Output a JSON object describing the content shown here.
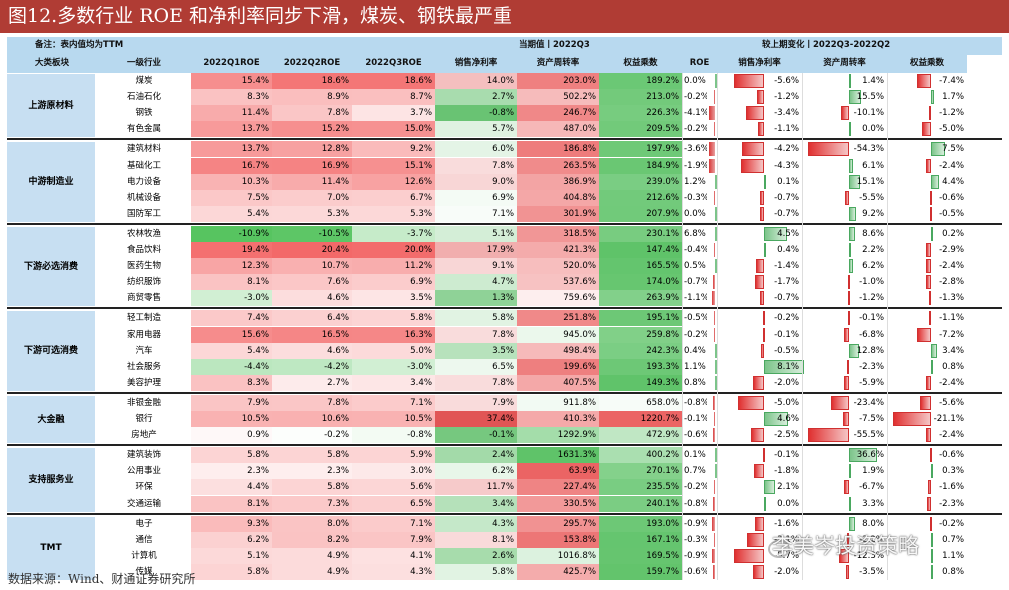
{
  "title": "图12.多数行业 ROE 和净利率同步下滑，煤炭、钢铁最严重",
  "note": "备注：表内值均为TTM",
  "current_header": "当期值丨2022Q3",
  "change_header": "较上期变化丨2022Q3-2022Q2",
  "columns": [
    "大类板块",
    "一级行业",
    "2022Q1ROE",
    "2022Q2ROE",
    "2022Q3ROE",
    "销售净利率",
    "资产周转率",
    "权益乘数",
    "ROE",
    "销售净利率",
    "资产周转率",
    "权益乘数"
  ],
  "source": "数据来源：Wind、财通证券研究所",
  "watermark": "李美岑投资策略",
  "groups": [
    {
      "name": "上游原材料",
      "rows": [
        {
          "industry": "煤炭",
          "q1": "15.4%",
          "q2": "18.6%",
          "q3": "18.6%",
          "npm": "14.0%",
          "at": "203.0%",
          "em": "189.2%",
          "d_roe": "0.0%",
          "d_npm": "-5.6%",
          "d_at": "1.4%",
          "d_em": "-7.4%"
        },
        {
          "industry": "石油石化",
          "q1": "8.3%",
          "q2": "8.9%",
          "q3": "8.7%",
          "npm": "2.7%",
          "at": "502.2%",
          "em": "213.0%",
          "d_roe": "-0.2%",
          "d_npm": "-1.2%",
          "d_at": "15.5%",
          "d_em": "1.7%"
        },
        {
          "industry": "钢铁",
          "q1": "11.4%",
          "q2": "7.8%",
          "q3": "3.7%",
          "npm": "-0.8%",
          "at": "246.7%",
          "em": "226.3%",
          "d_roe": "-4.1%",
          "d_npm": "-3.4%",
          "d_at": "-10.1%",
          "d_em": "-1.2%"
        },
        {
          "industry": "有色金属",
          "q1": "13.7%",
          "q2": "15.2%",
          "q3": "15.0%",
          "npm": "5.7%",
          "at": "487.0%",
          "em": "209.5%",
          "d_roe": "-0.2%",
          "d_npm": "-1.1%",
          "d_at": "0.0%",
          "d_em": "-5.0%"
        }
      ]
    },
    {
      "name": "中游制造业",
      "rows": [
        {
          "industry": "建筑材料",
          "q1": "13.7%",
          "q2": "12.8%",
          "q3": "9.2%",
          "npm": "6.0%",
          "at": "186.8%",
          "em": "197.9%",
          "d_roe": "-3.6%",
          "d_npm": "-4.2%",
          "d_at": "-54.3%",
          "d_em": "7.5%"
        },
        {
          "industry": "基础化工",
          "q1": "16.7%",
          "q2": "16.9%",
          "q3": "15.1%",
          "npm": "7.8%",
          "at": "263.5%",
          "em": "184.9%",
          "d_roe": "-1.9%",
          "d_npm": "-4.3%",
          "d_at": "6.1%",
          "d_em": "-2.4%"
        },
        {
          "industry": "电力设备",
          "q1": "10.3%",
          "q2": "11.4%",
          "q3": "12.6%",
          "npm": "9.0%",
          "at": "386.9%",
          "em": "239.0%",
          "d_roe": "1.2%",
          "d_npm": "0.1%",
          "d_at": "15.1%",
          "d_em": "4.4%"
        },
        {
          "industry": "机械设备",
          "q1": "7.5%",
          "q2": "7.0%",
          "q3": "6.7%",
          "npm": "6.9%",
          "at": "404.8%",
          "em": "212.6%",
          "d_roe": "-0.3%",
          "d_npm": "-0.7%",
          "d_at": "-5.5%",
          "d_em": "-0.6%"
        },
        {
          "industry": "国防军工",
          "q1": "5.4%",
          "q2": "5.3%",
          "q3": "5.3%",
          "npm": "7.1%",
          "at": "301.9%",
          "em": "207.9%",
          "d_roe": "0.0%",
          "d_npm": "-0.7%",
          "d_at": "9.2%",
          "d_em": "-0.5%"
        }
      ]
    },
    {
      "name": "下游必选消费",
      "rows": [
        {
          "industry": "农林牧渔",
          "q1": "-10.9%",
          "q2": "-10.5%",
          "q3": "-3.7%",
          "npm": "5.1%",
          "at": "318.5%",
          "em": "230.1%",
          "d_roe": "6.8%",
          "d_npm": "4.5%",
          "d_at": "8.6%",
          "d_em": "0.2%"
        },
        {
          "industry": "食品饮料",
          "q1": "19.4%",
          "q2": "20.4%",
          "q3": "20.0%",
          "npm": "17.9%",
          "at": "421.3%",
          "em": "147.4%",
          "d_roe": "-0.4%",
          "d_npm": "0.4%",
          "d_at": "2.2%",
          "d_em": "-2.9%"
        },
        {
          "industry": "医药生物",
          "q1": "12.3%",
          "q2": "10.7%",
          "q3": "11.2%",
          "npm": "9.1%",
          "at": "520.0%",
          "em": "165.5%",
          "d_roe": "0.5%",
          "d_npm": "-1.4%",
          "d_at": "6.2%",
          "d_em": "-2.4%"
        },
        {
          "industry": "纺织服饰",
          "q1": "8.1%",
          "q2": "7.6%",
          "q3": "6.9%",
          "npm": "4.7%",
          "at": "537.6%",
          "em": "174.0%",
          "d_roe": "-0.7%",
          "d_npm": "-1.7%",
          "d_at": "-1.0%",
          "d_em": "-2.8%"
        },
        {
          "industry": "商贸零售",
          "q1": "-3.0%",
          "q2": "4.6%",
          "q3": "3.5%",
          "npm": "1.3%",
          "at": "759.6%",
          "em": "263.9%",
          "d_roe": "-1.1%",
          "d_npm": "-0.7%",
          "d_at": "-1.2%",
          "d_em": "-1.3%"
        }
      ]
    },
    {
      "name": "下游可选消费",
      "rows": [
        {
          "industry": "轻工制造",
          "q1": "7.4%",
          "q2": "6.4%",
          "q3": "5.8%",
          "npm": "5.8%",
          "at": "251.8%",
          "em": "195.1%",
          "d_roe": "-0.5%",
          "d_npm": "-0.2%",
          "d_at": "-0.1%",
          "d_em": "-1.1%"
        },
        {
          "industry": "家用电器",
          "q1": "15.6%",
          "q2": "16.5%",
          "q3": "16.3%",
          "npm": "7.8%",
          "at": "945.0%",
          "em": "259.8%",
          "d_roe": "-0.2%",
          "d_npm": "-0.1%",
          "d_at": "-6.8%",
          "d_em": "-7.2%"
        },
        {
          "industry": "汽车",
          "q1": "5.4%",
          "q2": "4.6%",
          "q3": "5.0%",
          "npm": "3.5%",
          "at": "498.4%",
          "em": "242.3%",
          "d_roe": "0.4%",
          "d_npm": "-0.5%",
          "d_at": "12.8%",
          "d_em": "3.4%"
        },
        {
          "industry": "社会服务",
          "q1": "-4.4%",
          "q2": "-4.2%",
          "q3": "-3.0%",
          "npm": "6.5%",
          "at": "199.6%",
          "em": "193.3%",
          "d_roe": "1.1%",
          "d_npm": "8.1%",
          "d_at": "-2.3%",
          "d_em": "0.8%"
        },
        {
          "industry": "美容护理",
          "q1": "8.3%",
          "q2": "2.7%",
          "q3": "3.4%",
          "npm": "7.8%",
          "at": "407.5%",
          "em": "149.3%",
          "d_roe": "0.8%",
          "d_npm": "-2.0%",
          "d_at": "-5.9%",
          "d_em": "-2.4%"
        }
      ]
    },
    {
      "name": "大金融",
      "rows": [
        {
          "industry": "非银金融",
          "q1": "7.9%",
          "q2": "7.8%",
          "q3": "7.1%",
          "npm": "7.9%",
          "at": "911.8%",
          "em": "658.0%",
          "d_roe": "-0.8%",
          "d_npm": "-5.0%",
          "d_at": "-23.4%",
          "d_em": "-5.6%"
        },
        {
          "industry": "银行",
          "q1": "10.5%",
          "q2": "10.6%",
          "q3": "10.5%",
          "npm": "37.4%",
          "at": "410.3%",
          "em": "1220.7%",
          "d_roe": "-0.1%",
          "d_npm": "4.6%",
          "d_at": "-7.5%",
          "d_em": "-21.1%"
        },
        {
          "industry": "房地产",
          "q1": "0.9%",
          "q2": "-0.2%",
          "q3": "-0.8%",
          "npm": "-0.1%",
          "at": "1292.9%",
          "em": "472.9%",
          "d_roe": "-0.6%",
          "d_npm": "-2.5%",
          "d_at": "-55.5%",
          "d_em": "-2.4%"
        }
      ]
    },
    {
      "name": "支持服务业",
      "rows": [
        {
          "industry": "建筑装饰",
          "q1": "5.8%",
          "q2": "5.8%",
          "q3": "5.9%",
          "npm": "2.4%",
          "at": "1631.3%",
          "em": "400.2%",
          "d_roe": "0.1%",
          "d_npm": "-0.1%",
          "d_at": "36.6%",
          "d_em": "-0.6%"
        },
        {
          "industry": "公用事业",
          "q1": "2.3%",
          "q2": "2.3%",
          "q3": "3.0%",
          "npm": "6.2%",
          "at": "63.9%",
          "em": "270.1%",
          "d_roe": "0.7%",
          "d_npm": "-1.8%",
          "d_at": "1.9%",
          "d_em": "0.3%"
        },
        {
          "industry": "环保",
          "q1": "4.4%",
          "q2": "5.8%",
          "q3": "5.6%",
          "npm": "11.7%",
          "at": "227.4%",
          "em": "235.5%",
          "d_roe": "-0.2%",
          "d_npm": "2.1%",
          "d_at": "-6.7%",
          "d_em": "-1.6%"
        },
        {
          "industry": "交通运输",
          "q1": "8.1%",
          "q2": "7.3%",
          "q3": "6.5%",
          "npm": "3.4%",
          "at": "330.5%",
          "em": "240.1%",
          "d_roe": "-0.8%",
          "d_npm": "0.0%",
          "d_at": "3.3%",
          "d_em": "-2.3%"
        }
      ]
    },
    {
      "name": "TMT",
      "rows": [
        {
          "industry": "电子",
          "q1": "9.3%",
          "q2": "8.0%",
          "q3": "7.1%",
          "npm": "4.3%",
          "at": "295.7%",
          "em": "193.0%",
          "d_roe": "-0.9%",
          "d_npm": "-1.6%",
          "d_at": "8.0%",
          "d_em": "-0.2%"
        },
        {
          "industry": "通信",
          "q1": "6.2%",
          "q2": "8.2%",
          "q3": "7.9%",
          "npm": "8.1%",
          "at": "153.8%",
          "em": "167.1%",
          "d_roe": "-0.3%",
          "d_npm": "-3.1%",
          "d_at": "-2.2%",
          "d_em": "0.7%"
        },
        {
          "industry": "计算机",
          "q1": "5.1%",
          "q2": "4.9%",
          "q3": "4.1%",
          "npm": "2.6%",
          "at": "1016.8%",
          "em": "169.5%",
          "d_roe": "-0.9%",
          "d_npm": "-5.7%",
          "d_at": "-12.3%",
          "d_em": "1.1%"
        },
        {
          "industry": "传媒",
          "q1": "5.8%",
          "q2": "4.9%",
          "q3": "4.3%",
          "npm": "5.8%",
          "at": "425.7%",
          "em": "159.7%",
          "d_roe": "-0.6%",
          "d_npm": "-2.0%",
          "d_at": "-3.5%",
          "d_em": "0.8%"
        }
      ]
    }
  ]
}
